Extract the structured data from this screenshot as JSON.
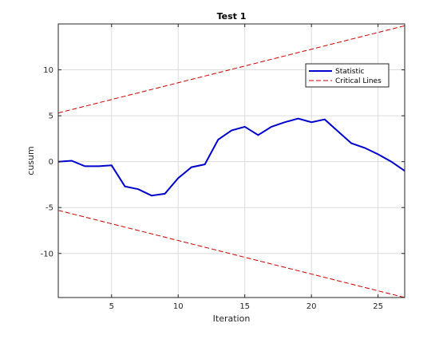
{
  "chart_data": {
    "type": "line",
    "title": "Test 1",
    "xlabel": "Iteration",
    "ylabel": "cusum",
    "xlim": [
      1,
      27
    ],
    "ylim": [
      -14.8,
      15
    ],
    "xticks": [
      5,
      10,
      15,
      20,
      25
    ],
    "yticks": [
      -10,
      -5,
      0,
      5,
      10
    ],
    "grid": true,
    "legend_position": "upper-right",
    "series": [
      {
        "name": "Statistic",
        "color": "#0000cc",
        "style": "solid",
        "x": [
          1,
          2,
          3,
          4,
          5,
          6,
          7,
          8,
          9,
          10,
          11,
          12,
          13,
          14,
          15,
          16,
          17,
          18,
          19,
          20,
          21,
          22,
          23,
          24,
          25,
          26,
          27
        ],
        "y": [
          0,
          0.1,
          -0.5,
          -0.5,
          -0.4,
          -2.7,
          -3.0,
          -3.7,
          -3.5,
          -1.8,
          -0.6,
          -0.3,
          2.4,
          3.4,
          3.8,
          2.9,
          3.8,
          4.3,
          4.7,
          4.3,
          4.6,
          3.3,
          2.0,
          1.5,
          0.8,
          0.0,
          -1.0
        ]
      },
      {
        "name": "Critical Lines",
        "color": "#cc0000",
        "style": "dashed",
        "x": [
          1,
          27
        ],
        "y": [
          5.3,
          14.8
        ]
      },
      {
        "name": "",
        "color": "#cc0000",
        "style": "dashed",
        "x": [
          1,
          27
        ],
        "y": [
          -5.3,
          -14.8
        ]
      }
    ]
  }
}
